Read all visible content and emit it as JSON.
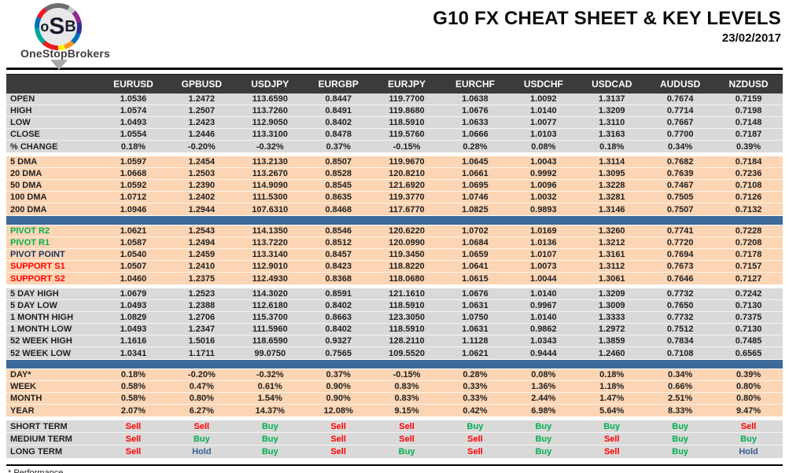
{
  "header": {
    "brand": "OneStopBrokers",
    "logo_letters": {
      "o": "o",
      "s": "S",
      "b": "B"
    },
    "title": "G10 FX CHEAT SHEET & KEY LEVELS",
    "date": "23/02/2017"
  },
  "colors": {
    "header_bg": "#3b3b3b",
    "section_gray": "#d9d9d9",
    "section_peach": "#fcd5b4",
    "divider_blue": "#3d699b",
    "green": "#00b050",
    "red": "#ff0000",
    "navy": "#17375e",
    "hold_blue": "#366092"
  },
  "signal_colors": {
    "Sell": "#ff0000",
    "Buy": "#00b050",
    "Hold": "#366092"
  },
  "table": {
    "columns": [
      "EURUSD",
      "GPBUSD",
      "USDJPY",
      "EURGBP",
      "EURJPY",
      "EURCHF",
      "USDCHF",
      "USDCAD",
      "AUDUSD",
      "NZDUSD"
    ],
    "sections": [
      {
        "id": "ohlc",
        "bg": "gray",
        "divider_before": "none",
        "rows": [
          {
            "label": "OPEN",
            "values": [
              "1.0536",
              "1.2472",
              "113.6590",
              "0.8447",
              "119.7700",
              "1.0638",
              "1.0092",
              "1.3137",
              "0.7674",
              "0.7159"
            ]
          },
          {
            "label": "HIGH",
            "values": [
              "1.0574",
              "1.2507",
              "113.7260",
              "0.8491",
              "119.8680",
              "1.0676",
              "1.0140",
              "1.3209",
              "0.7714",
              "0.7198"
            ]
          },
          {
            "label": "LOW",
            "values": [
              "1.0493",
              "1.2423",
              "112.9050",
              "0.8402",
              "118.5910",
              "1.0633",
              "1.0077",
              "1.3110",
              "0.7667",
              "0.7148"
            ]
          },
          {
            "label": "CLOSE",
            "values": [
              "1.0554",
              "1.2446",
              "113.3100",
              "0.8478",
              "119.5760",
              "1.0666",
              "1.0103",
              "1.3163",
              "0.7700",
              "0.7187"
            ]
          },
          {
            "label": "% CHANGE",
            "values": [
              "0.18%",
              "-0.20%",
              "-0.32%",
              "0.37%",
              "-0.15%",
              "0.28%",
              "0.08%",
              "0.18%",
              "0.34%",
              "0.39%"
            ]
          }
        ]
      },
      {
        "id": "dma",
        "bg": "peach",
        "divider_before": "gap",
        "rows": [
          {
            "label": "5 DMA",
            "values": [
              "1.0597",
              "1.2454",
              "113.2130",
              "0.8507",
              "119.9670",
              "1.0645",
              "1.0043",
              "1.3114",
              "0.7682",
              "0.7184"
            ]
          },
          {
            "label": "20 DMA",
            "values": [
              "1.0668",
              "1.2503",
              "113.2670",
              "0.8528",
              "120.8210",
              "1.0661",
              "0.9992",
              "1.3095",
              "0.7639",
              "0.7236"
            ]
          },
          {
            "label": "50 DMA",
            "values": [
              "1.0592",
              "1.2390",
              "114.9090",
              "0.8545",
              "121.6920",
              "1.0695",
              "1.0096",
              "1.3228",
              "0.7467",
              "0.7108"
            ]
          },
          {
            "label": "100 DMA",
            "values": [
              "1.0712",
              "1.2402",
              "111.5300",
              "0.8635",
              "119.3770",
              "1.0746",
              "1.0032",
              "1.3281",
              "0.7505",
              "0.7126"
            ]
          },
          {
            "label": "200 DMA",
            "values": [
              "1.0946",
              "1.2944",
              "107.6310",
              "0.8468",
              "117.6770",
              "1.0825",
              "0.9893",
              "1.3146",
              "0.7507",
              "0.7132"
            ]
          }
        ]
      },
      {
        "id": "pivots",
        "bg": "peach",
        "divider_before": "bar",
        "rows": [
          {
            "label": "PIVOT R2",
            "label_color": "green",
            "values": [
              "1.0621",
              "1.2543",
              "114.1350",
              "0.8546",
              "120.6220",
              "1.0702",
              "1.0169",
              "1.3260",
              "0.7741",
              "0.7228"
            ]
          },
          {
            "label": "PIVOT R1",
            "label_color": "green",
            "values": [
              "1.0587",
              "1.2494",
              "113.7220",
              "0.8512",
              "120.0990",
              "1.0684",
              "1.0136",
              "1.3212",
              "0.7720",
              "0.7208"
            ]
          },
          {
            "label": "PIVOT POINT",
            "label_color": "navy",
            "values": [
              "1.0540",
              "1.2459",
              "113.3140",
              "0.8457",
              "119.3450",
              "1.0659",
              "1.0107",
              "1.3161",
              "0.7694",
              "0.7178"
            ]
          },
          {
            "label": "SUPPORT S1",
            "label_color": "red",
            "values": [
              "1.0507",
              "1.2410",
              "112.9010",
              "0.8423",
              "118.8220",
              "1.0641",
              "1.0073",
              "1.3112",
              "0.7673",
              "0.7157"
            ]
          },
          {
            "label": "SUPPORT S2",
            "label_color": "red",
            "values": [
              "1.0460",
              "1.2375",
              "112.4930",
              "0.8368",
              "118.0680",
              "1.0615",
              "1.0044",
              "1.3061",
              "0.7646",
              "0.7127"
            ]
          }
        ]
      },
      {
        "id": "ranges",
        "bg": "gray",
        "divider_before": "gap",
        "rows": [
          {
            "label": "5 DAY HIGH",
            "values": [
              "1.0679",
              "1.2523",
              "114.3020",
              "0.8591",
              "121.1610",
              "1.0676",
              "1.0140",
              "1.3209",
              "0.7732",
              "0.7242"
            ]
          },
          {
            "label": "5 DAY LOW",
            "values": [
              "1.0493",
              "1.2388",
              "112.6180",
              "0.8402",
              "118.5910",
              "1.0631",
              "0.9967",
              "1.3009",
              "0.7650",
              "0.7130"
            ]
          },
          {
            "label": "1 MONTH HIGH",
            "values": [
              "1.0829",
              "1.2706",
              "115.3700",
              "0.8663",
              "123.3050",
              "1.0750",
              "1.0140",
              "1.3333",
              "0.7732",
              "0.7375"
            ]
          },
          {
            "label": "1 MONTH LOW",
            "values": [
              "1.0493",
              "1.2347",
              "111.5960",
              "0.8402",
              "118.5910",
              "1.0631",
              "0.9862",
              "1.2972",
              "0.7512",
              "0.7130"
            ]
          },
          {
            "label": "52 WEEK HIGH",
            "values": [
              "1.1616",
              "1.5016",
              "118.6590",
              "0.9327",
              "128.2110",
              "1.1128",
              "1.0343",
              "1.3859",
              "0.7834",
              "0.7485"
            ]
          },
          {
            "label": "52 WEEK LOW",
            "values": [
              "1.0341",
              "1.1711",
              "99.0750",
              "0.7565",
              "109.5520",
              "1.0621",
              "0.9444",
              "1.2460",
              "0.7108",
              "0.6565"
            ]
          }
        ]
      },
      {
        "id": "performance",
        "bg": "peach",
        "divider_before": "bar",
        "rows": [
          {
            "label": "DAY*",
            "values": [
              "0.18%",
              "-0.20%",
              "-0.32%",
              "0.37%",
              "-0.15%",
              "0.28%",
              "0.08%",
              "0.18%",
              "0.34%",
              "0.39%"
            ]
          },
          {
            "label": "WEEK",
            "values": [
              "0.58%",
              "0.47%",
              "0.61%",
              "0.90%",
              "0.83%",
              "0.33%",
              "1.36%",
              "1.18%",
              "0.66%",
              "0.80%"
            ]
          },
          {
            "label": "MONTH",
            "values": [
              "0.58%",
              "0.80%",
              "1.54%",
              "0.90%",
              "0.83%",
              "0.33%",
              "2.44%",
              "1.47%",
              "2.51%",
              "0.80%"
            ]
          },
          {
            "label": "YEAR",
            "values": [
              "2.07%",
              "6.27%",
              "14.37%",
              "12.08%",
              "9.15%",
              "0.42%",
              "6.98%",
              "5.64%",
              "8.33%",
              "9.47%"
            ]
          }
        ]
      },
      {
        "id": "signals",
        "bg": "gray",
        "divider_before": "gap",
        "signals": true,
        "rows": [
          {
            "label": "SHORT TERM",
            "values": [
              "Sell",
              "Sell",
              "Buy",
              "Sell",
              "Sell",
              "Buy",
              "Buy",
              "Buy",
              "Buy",
              "Sell"
            ]
          },
          {
            "label": "MEDIUM TERM",
            "values": [
              "Sell",
              "Buy",
              "Buy",
              "Sell",
              "Sell",
              "Sell",
              "Buy",
              "Sell",
              "Buy",
              "Buy"
            ]
          },
          {
            "label": "LONG TERM",
            "values": [
              "Sell",
              "Hold",
              "Buy",
              "Sell",
              "Buy",
              "Sell",
              "Buy",
              "Sell",
              "Buy",
              "Hold"
            ]
          }
        ]
      }
    ]
  },
  "footnote": "* Performance"
}
